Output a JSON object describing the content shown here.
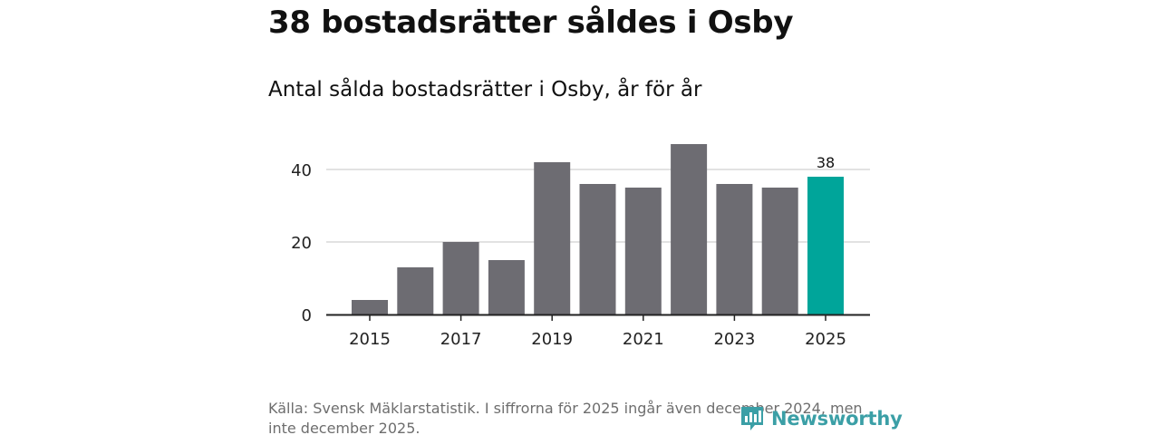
{
  "title": "38 bostadsrätter såldes i Osby",
  "subtitle": "Antal sålda bostadsrätter i Osby, år för år",
  "source": "Källa: Svensk Mäklarstatistik. I siffrorna för 2025 ingår även december 2024, men inte december 2025.",
  "logo": {
    "text": "Newsworthy",
    "icon": "newsworthy-logo-icon",
    "color": "#3b9fa6"
  },
  "colors": {
    "bar": "#6d6c72",
    "highlight": "#00a59a",
    "grid": "#d9d9d9",
    "axis": "#222222"
  },
  "chart_data": {
    "type": "bar",
    "title": "Antal sålda bostadsrätter i Osby, år för år",
    "xlabel": "",
    "ylabel": "",
    "categories": [
      "2015",
      "2016",
      "2017",
      "2018",
      "2019",
      "2020",
      "2021",
      "2022",
      "2023",
      "2024",
      "2025"
    ],
    "values": [
      4,
      13,
      20,
      15,
      42,
      36,
      35,
      47,
      36,
      35,
      38
    ],
    "ylim": [
      0,
      48
    ],
    "yticks": [
      0,
      20,
      40
    ],
    "xtick_labels": [
      "2015",
      "2017",
      "2019",
      "2021",
      "2023",
      "2025"
    ],
    "grid": true,
    "highlight": {
      "category": "2025",
      "label": "38"
    },
    "legend": "none"
  }
}
